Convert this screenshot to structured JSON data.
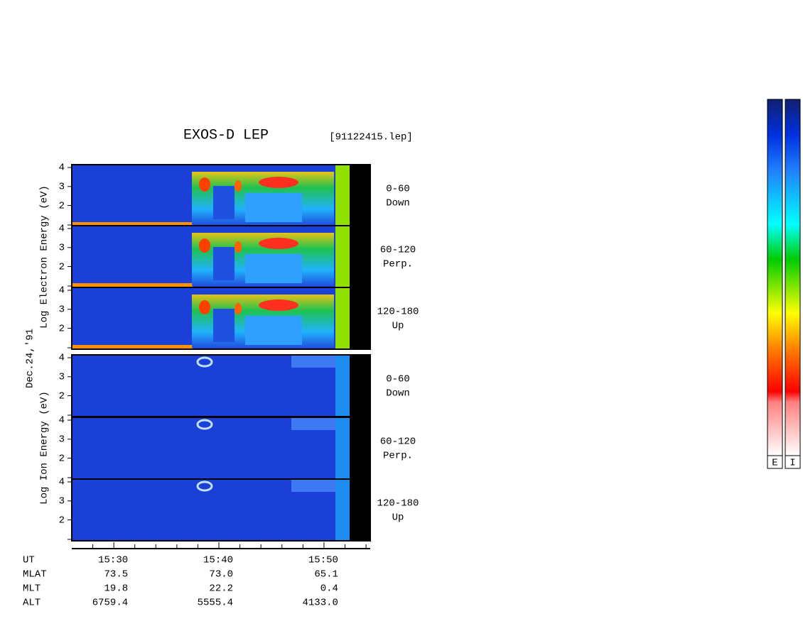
{
  "chart_data": {
    "type": "spectrogram",
    "title": "EXOS-D LEP",
    "file": "[91122415.lep]",
    "date": "Dec.24,'91",
    "ylim": [
      0.9,
      4.15
    ],
    "yticks": [
      2,
      3,
      4
    ],
    "xlim": [
      26,
      54.4
    ],
    "xticks": [
      {
        "value": 30,
        "label": "15:30"
      },
      {
        "value": 40,
        "label": "15:40"
      },
      {
        "value": 50,
        "label": "15:50"
      }
    ],
    "xminor": [
      28,
      32,
      34,
      36,
      38,
      42,
      44,
      46,
      48,
      52,
      54
    ],
    "groups": [
      {
        "ylabel": "Log Electron Energy (eV)",
        "panels": [
          {
            "label": [
              "0-60",
              "Down"
            ]
          },
          {
            "label": [
              "60-120",
              "Perp."
            ]
          },
          {
            "label": [
              "120-180",
              "Up"
            ]
          }
        ]
      },
      {
        "ylabel": "Log Ion Energy (eV)",
        "panels": [
          {
            "label": [
              "0-60",
              "Down"
            ]
          },
          {
            "label": [
              "60-120",
              "Perp."
            ]
          },
          {
            "label": [
              "120-180",
              "Up"
            ]
          }
        ]
      }
    ],
    "xlabel": "UT",
    "orbit": [
      {
        "name": "MLAT",
        "values": [
          "73.5",
          "73.0",
          "65.1"
        ]
      },
      {
        "name": "MLT",
        "values": [
          "19.8",
          "22.2",
          "0.4"
        ]
      },
      {
        "name": "ALT",
        "values": [
          "6759.4",
          "5555.4",
          "4133.0"
        ]
      }
    ],
    "colorbars": [
      "E",
      "I"
    ]
  }
}
